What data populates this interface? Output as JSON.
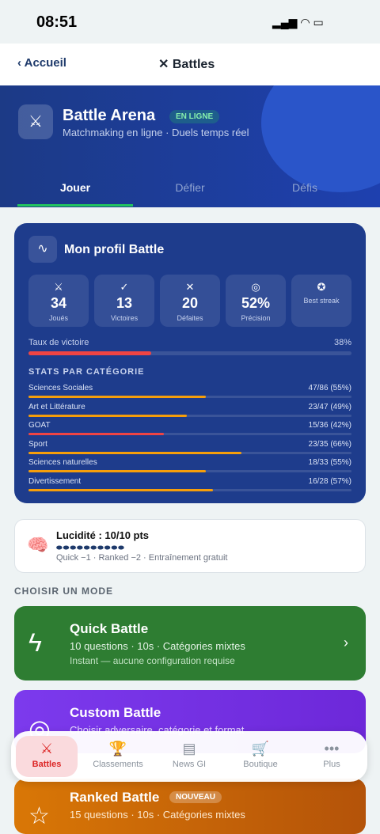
{
  "status": {
    "time": "08:51"
  },
  "nav": {
    "back": "Accueil",
    "title": "Battles"
  },
  "header": {
    "title": "Battle Arena",
    "badge": "EN LIGNE",
    "subtitle": "Matchmaking en ligne · Duels temps réel"
  },
  "tabs": [
    "Jouer",
    "Défier",
    "Défis"
  ],
  "profile": {
    "title": "Mon profil Battle",
    "stats": [
      {
        "value": "34",
        "label": "Joués"
      },
      {
        "value": "13",
        "label": "Victoires"
      },
      {
        "value": "20",
        "label": "Défaites"
      },
      {
        "value": "52%",
        "label": "Précision"
      },
      {
        "label": "Best streak"
      }
    ],
    "win_rate_label": "Taux de victoire",
    "win_rate": 38,
    "win_rate_text": "38%",
    "categories_title": "STATS PAR CATÉGORIE",
    "categories": [
      {
        "name": "Sciences Sociales",
        "score": "47/86 (55%)",
        "percent": 55
      },
      {
        "name": "Art et Littérature",
        "score": "23/47 (49%)",
        "percent": 49
      },
      {
        "name": "GOAT",
        "score": "15/36 (42%)",
        "percent": 42
      },
      {
        "name": "Sport",
        "score": "23/35 (66%)",
        "percent": 66
      },
      {
        "name": "Sciences naturelles",
        "score": "18/33 (55%)",
        "percent": 55
      },
      {
        "name": "Divertissement",
        "score": "16/28 (57%)",
        "percent": 57
      }
    ]
  },
  "lucidity": {
    "title": "Lucidité : 10/10 pts",
    "note": "Quick −1 · Ranked −2 · Entraînement gratuit"
  },
  "modes_title": "CHOISIR UN MODE",
  "modes": [
    {
      "title": "Quick Battle",
      "line1": "10 questions · 10s · Catégories mixtes",
      "line2": "Instant — aucune configuration requise"
    },
    {
      "title": "Custom Battle",
      "line1": "Choisir adversaire, catégorie et format"
    },
    {
      "title": "Ranked Battle",
      "badge": "NOUVEAU",
      "line1": "15 questions · 10s · Catégories mixtes"
    }
  ],
  "tabbar": [
    "Battles",
    "Classements",
    "News GI",
    "Boutique",
    "Plus"
  ]
}
